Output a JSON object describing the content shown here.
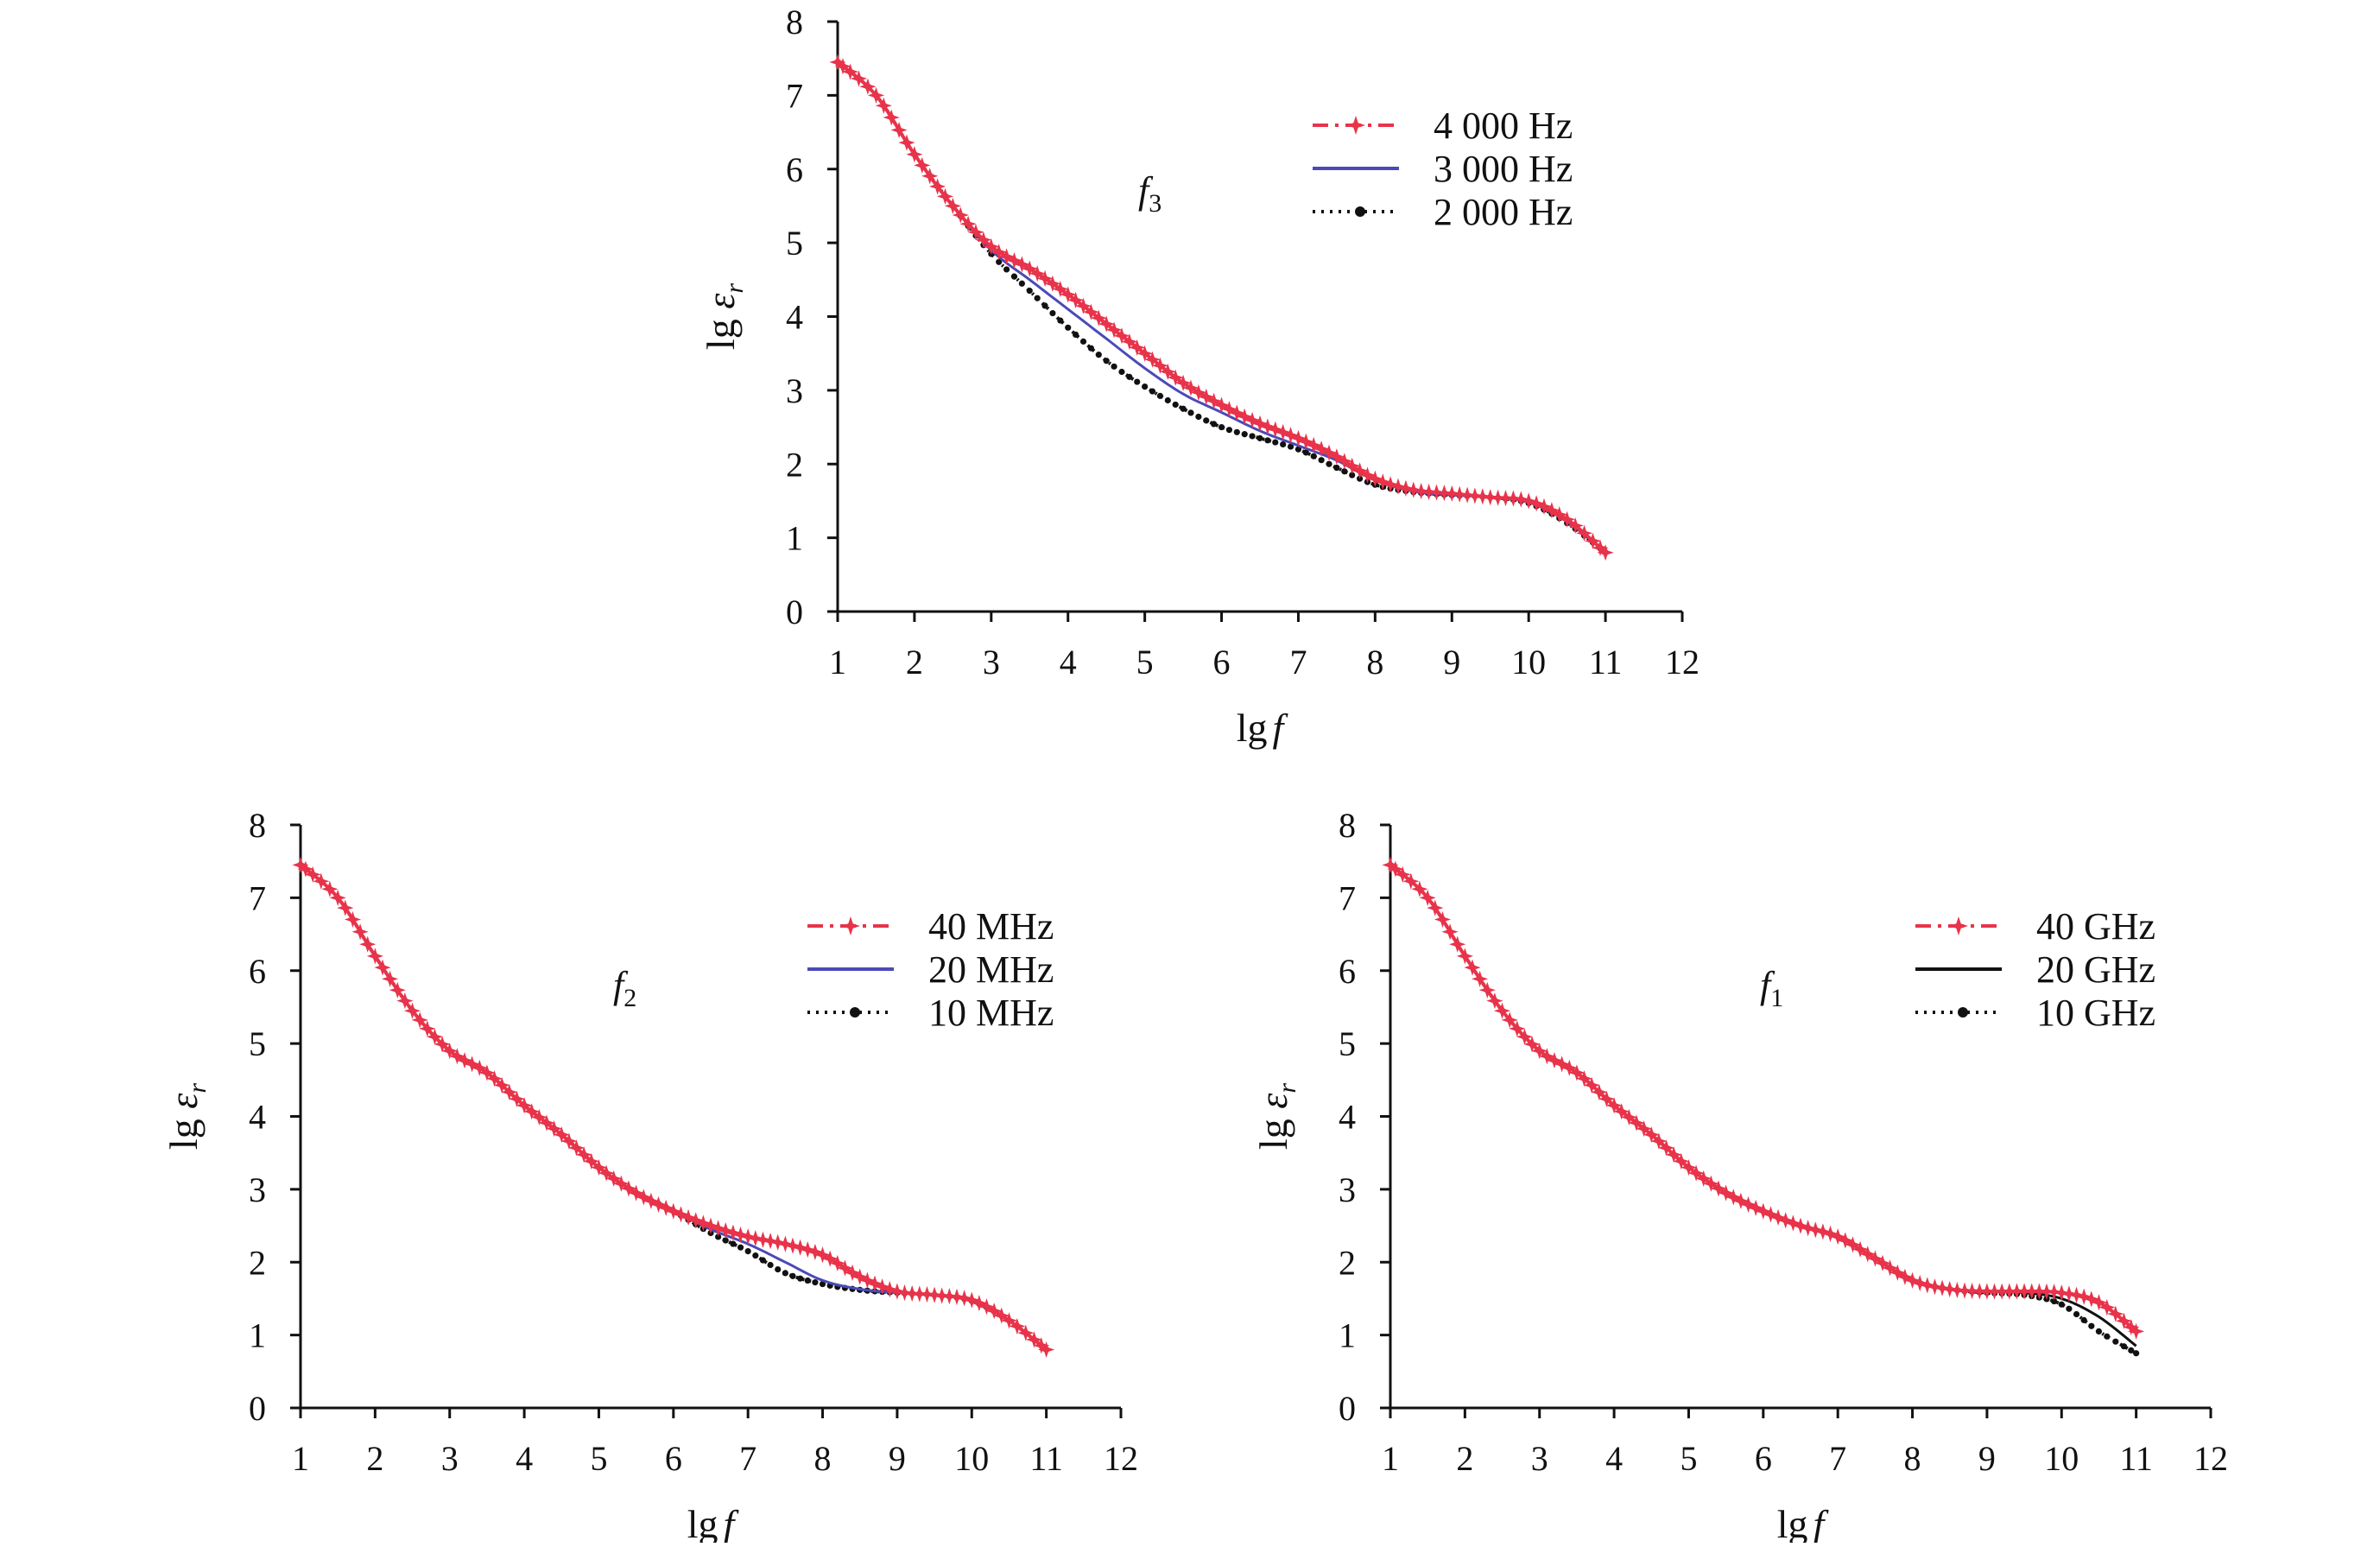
{
  "chart_data": [
    {
      "type": "line",
      "annotation": {
        "main": "f",
        "sub": "3"
      },
      "xlabel": {
        "main": "lg",
        "italic": "f"
      },
      "ylabel": {
        "main": "lg ",
        "italic": "ε",
        "sub": "r"
      },
      "xlim": [
        1,
        12
      ],
      "ylim": [
        0,
        8
      ],
      "xticks": [
        "1",
        "2",
        "3",
        "4",
        "5",
        "6",
        "7",
        "8",
        "9",
        "10",
        "11",
        "12"
      ],
      "yticks": [
        "0",
        "1",
        "2",
        "3",
        "4",
        "5",
        "6",
        "7",
        "8"
      ],
      "grid": false,
      "legend_position": "top-right",
      "series": [
        {
          "name": "4 000 Hz",
          "color": "#e8334a",
          "style": "dashdot-star",
          "x": [
            1,
            1.5,
            2,
            2.5,
            3,
            3.5,
            4,
            4.5,
            5,
            5.5,
            6,
            6.5,
            7,
            7.5,
            8,
            8.5,
            9,
            9.5,
            10,
            10.5,
            11
          ],
          "y": [
            7.45,
            7.0,
            6.2,
            5.5,
            4.95,
            4.65,
            4.3,
            3.9,
            3.5,
            3.1,
            2.8,
            2.55,
            2.35,
            2.1,
            1.8,
            1.65,
            1.6,
            1.55,
            1.5,
            1.25,
            0.8
          ]
        },
        {
          "name": "3 000 Hz",
          "color": "#4a4ab8",
          "style": "solid",
          "x": [
            1,
            1.5,
            2,
            2.5,
            3,
            3.5,
            4,
            4.5,
            5,
            5.5,
            6,
            6.5,
            7,
            7.5,
            8,
            8.5,
            9,
            9.5,
            10,
            10.5,
            11
          ],
          "y": [
            7.45,
            7.0,
            6.2,
            5.5,
            4.9,
            4.5,
            4.1,
            3.7,
            3.3,
            2.95,
            2.7,
            2.45,
            2.25,
            2.05,
            1.78,
            1.63,
            1.58,
            1.55,
            1.48,
            1.22,
            0.8
          ]
        },
        {
          "name": "2 000 Hz",
          "color": "#111111",
          "style": "dotted-dot",
          "x": [
            1,
            1.5,
            2,
            2.5,
            3,
            3.5,
            4,
            4.5,
            5,
            5.5,
            6,
            6.5,
            7,
            7.5,
            8,
            8.5,
            9,
            9.5,
            10,
            10.5,
            11
          ],
          "y": [
            7.45,
            7.0,
            6.2,
            5.5,
            4.85,
            4.35,
            3.85,
            3.4,
            3.05,
            2.75,
            2.5,
            2.35,
            2.2,
            1.95,
            1.72,
            1.62,
            1.58,
            1.55,
            1.47,
            1.2,
            0.8
          ]
        }
      ]
    },
    {
      "type": "line",
      "annotation": {
        "main": "f",
        "sub": "2"
      },
      "xlabel": {
        "main": "lg",
        "italic": "f"
      },
      "ylabel": {
        "main": "lg ",
        "italic": "ε",
        "sub": "r"
      },
      "xlim": [
        1,
        12
      ],
      "ylim": [
        0,
        8
      ],
      "xticks": [
        "1",
        "2",
        "3",
        "4",
        "5",
        "6",
        "7",
        "8",
        "9",
        "10",
        "11",
        "12"
      ],
      "yticks": [
        "0",
        "1",
        "2",
        "3",
        "4",
        "5",
        "6",
        "7",
        "8"
      ],
      "grid": false,
      "legend_position": "top-right",
      "series": [
        {
          "name": "40 MHz",
          "color": "#e8334a",
          "style": "dashdot-star",
          "x": [
            1,
            1.5,
            2,
            2.5,
            3,
            3.5,
            4,
            4.5,
            5,
            5.5,
            6,
            6.5,
            7,
            7.5,
            8,
            8.5,
            9,
            9.5,
            10,
            10.5,
            11
          ],
          "y": [
            7.45,
            7.0,
            6.2,
            5.45,
            4.9,
            4.6,
            4.15,
            3.75,
            3.3,
            2.95,
            2.7,
            2.5,
            2.35,
            2.25,
            2.1,
            1.8,
            1.6,
            1.55,
            1.48,
            1.2,
            0.8
          ]
        },
        {
          "name": "20 MHz",
          "color": "#4a4ab8",
          "style": "solid",
          "x": [
            1,
            1.5,
            2,
            2.5,
            3,
            3.5,
            4,
            4.5,
            5,
            5.5,
            6,
            6.5,
            7,
            7.5,
            8,
            8.5,
            9,
            9.5,
            10,
            10.5,
            11
          ],
          "y": [
            7.45,
            7.0,
            6.2,
            5.45,
            4.9,
            4.6,
            4.15,
            3.75,
            3.3,
            2.95,
            2.7,
            2.45,
            2.25,
            2.0,
            1.75,
            1.63,
            1.58,
            1.55,
            1.48,
            1.2,
            0.8
          ]
        },
        {
          "name": "10 MHz",
          "color": "#111111",
          "style": "dotted-dot",
          "x": [
            1,
            1.5,
            2,
            2.5,
            3,
            3.5,
            4,
            4.5,
            5,
            5.5,
            6,
            6.5,
            7,
            7.5,
            8,
            8.5,
            9,
            9.5,
            10,
            10.5,
            11
          ],
          "y": [
            7.45,
            7.0,
            6.2,
            5.45,
            4.9,
            4.6,
            4.15,
            3.75,
            3.3,
            2.95,
            2.7,
            2.4,
            2.15,
            1.85,
            1.7,
            1.62,
            1.58,
            1.55,
            1.47,
            1.2,
            0.8
          ]
        }
      ]
    },
    {
      "type": "line",
      "annotation": {
        "main": "f",
        "sub": "1"
      },
      "xlabel": {
        "main": "lg",
        "italic": "f"
      },
      "ylabel": {
        "main": "lg ",
        "italic": "ε",
        "sub": "r"
      },
      "xlim": [
        1,
        12
      ],
      "ylim": [
        0,
        8
      ],
      "xticks": [
        "1",
        "2",
        "3",
        "4",
        "5",
        "6",
        "7",
        "8",
        "9",
        "10",
        "11",
        "12"
      ],
      "yticks": [
        "0",
        "1",
        "2",
        "3",
        "4",
        "5",
        "6",
        "7",
        "8"
      ],
      "grid": false,
      "legend_position": "top-right",
      "series": [
        {
          "name": "40 GHz",
          "color": "#e8334a",
          "style": "dashdot-star",
          "x": [
            1,
            1.5,
            2,
            2.5,
            3,
            3.5,
            4,
            4.5,
            5,
            5.5,
            6,
            6.5,
            7,
            7.5,
            8,
            8.5,
            9,
            9.5,
            10,
            10.5,
            11
          ],
          "y": [
            7.45,
            7.0,
            6.2,
            5.45,
            4.9,
            4.6,
            4.15,
            3.75,
            3.3,
            2.95,
            2.7,
            2.5,
            2.35,
            2.05,
            1.75,
            1.63,
            1.6,
            1.6,
            1.58,
            1.45,
            1.05
          ]
        },
        {
          "name": "20 GHz",
          "color": "#111111",
          "style": "solid",
          "x": [
            1,
            1.5,
            2,
            2.5,
            3,
            3.5,
            4,
            4.5,
            5,
            5.5,
            6,
            6.5,
            7,
            7.5,
            8,
            8.5,
            9,
            9.5,
            10,
            10.5,
            11
          ],
          "y": [
            7.45,
            7.0,
            6.2,
            5.45,
            4.9,
            4.6,
            4.15,
            3.75,
            3.3,
            2.95,
            2.7,
            2.5,
            2.35,
            2.05,
            1.75,
            1.63,
            1.6,
            1.58,
            1.5,
            1.25,
            0.85
          ]
        },
        {
          "name": "10 GHz",
          "color": "#111111",
          "style": "dotted-dot",
          "x": [
            1,
            1.5,
            2,
            2.5,
            3,
            3.5,
            4,
            4.5,
            5,
            5.5,
            6,
            6.5,
            7,
            7.5,
            8,
            8.5,
            9,
            9.5,
            10,
            10.5,
            11
          ],
          "y": [
            7.45,
            7.0,
            6.2,
            5.45,
            4.9,
            4.6,
            4.15,
            3.75,
            3.3,
            2.95,
            2.7,
            2.5,
            2.35,
            2.05,
            1.75,
            1.63,
            1.58,
            1.55,
            1.42,
            1.05,
            0.75
          ]
        }
      ]
    }
  ]
}
